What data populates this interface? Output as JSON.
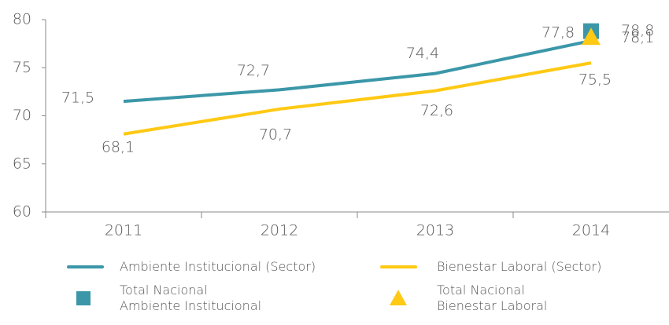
{
  "chart_data": {
    "type": "line",
    "categories": [
      "2011",
      "2012",
      "2013",
      "2014"
    ],
    "series": [
      {
        "name": "Ambiente Institucional (Sector)",
        "color": "#3b97a8",
        "values": [
          71.5,
          72.7,
          74.4,
          77.8
        ],
        "value_labels": [
          "71,5",
          "72,7",
          "74,4",
          "77,8"
        ],
        "marker": "line"
      },
      {
        "name": "Bienestar Laboral (Sector)",
        "color": "#ffc914",
        "values": [
          68.1,
          70.7,
          72.6,
          75.5
        ],
        "value_labels": [
          "68,1",
          "70,7",
          "72,6",
          "75,5"
        ],
        "marker": "line"
      },
      {
        "name": "Total Nacional\nAmbiente Institucional",
        "color": "#3b97a8",
        "values": [
          null,
          null,
          null,
          78.8
        ],
        "value_labels": [
          null,
          null,
          null,
          "78,8"
        ],
        "marker": "square"
      },
      {
        "name": "Total Nacional\nBienestar Laboral",
        "color": "#ffc914",
        "values": [
          null,
          null,
          null,
          78.1
        ],
        "value_labels": [
          null,
          null,
          null,
          "78,1"
        ],
        "marker": "triangle"
      }
    ],
    "ylim": [
      60,
      80
    ],
    "yticks": [
      60,
      65,
      70,
      75,
      80
    ],
    "grid": false
  }
}
